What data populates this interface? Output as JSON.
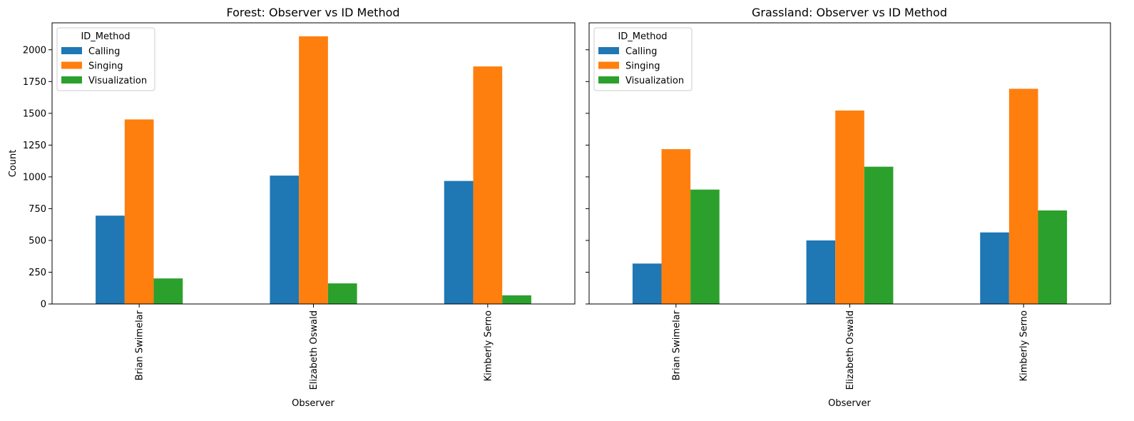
{
  "chart_data": [
    {
      "type": "bar",
      "title": "Forest: Observer vs ID Method",
      "xlabel": "Observer",
      "ylabel": "Count",
      "categories": [
        "Brian Swimelar",
        "Elizabeth Oswald",
        "Kimberly Serno"
      ],
      "series": [
        {
          "name": "Calling",
          "values": [
            695,
            1010,
            968
          ]
        },
        {
          "name": "Singing",
          "values": [
            1452,
            2106,
            1869
          ]
        },
        {
          "name": "Visualization",
          "values": [
            201,
            162,
            68
          ]
        }
      ],
      "ylim": [
        0,
        2212
      ],
      "yticks": [
        0,
        250,
        500,
        750,
        1000,
        1250,
        1500,
        1750,
        2000
      ],
      "legend": {
        "title": "ID_Method",
        "placement": "upper-left"
      },
      "grid": false
    },
    {
      "type": "bar",
      "title": "Grassland: Observer vs ID Method",
      "xlabel": "Observer",
      "ylabel": "",
      "categories": [
        "Brian Swimelar",
        "Elizabeth Oswald",
        "Kimberly Serno"
      ],
      "series": [
        {
          "name": "Calling",
          "values": [
            318,
            500,
            563
          ]
        },
        {
          "name": "Singing",
          "values": [
            1218,
            1522,
            1693
          ]
        },
        {
          "name": "Visualization",
          "values": [
            900,
            1080,
            736
          ]
        }
      ],
      "ylim": [
        0,
        2212
      ],
      "yticks": [
        0,
        250,
        500,
        750,
        1000,
        1250,
        1500,
        1750,
        2000
      ],
      "shared_y": true,
      "legend": {
        "title": "ID_Method",
        "placement": "upper-left"
      },
      "grid": false
    }
  ],
  "colors": {
    "Calling": "#1f77b4",
    "Singing": "#ff7f0e",
    "Visualization": "#2ca02c"
  }
}
